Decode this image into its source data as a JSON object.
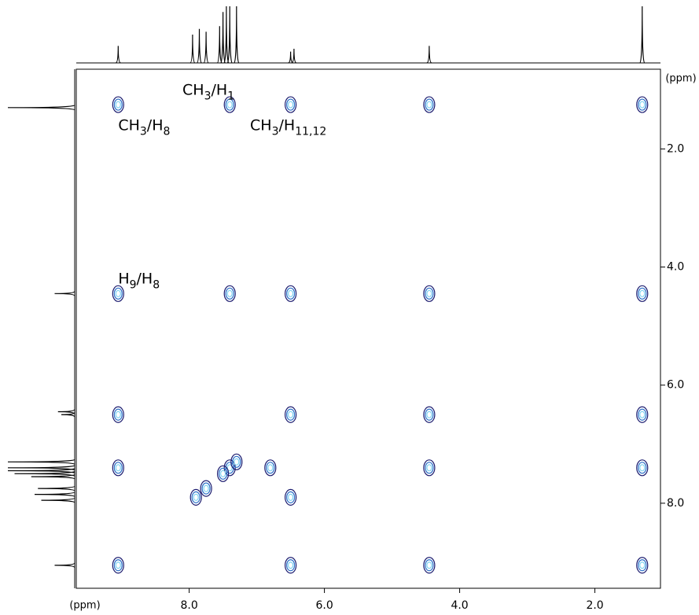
{
  "chart_data": {
    "type": "contour",
    "xlabel": "(ppm)",
    "ylabel": "(ppm)",
    "xlim": [
      9.67,
      1.03
    ],
    "ylim": [
      0.65,
      9.44
    ],
    "xticks": [
      {
        "value": 8,
        "label": "8.0"
      },
      {
        "value": 6,
        "label": "6.0"
      },
      {
        "value": 4,
        "label": "4.0"
      },
      {
        "value": 2,
        "label": "2.0"
      }
    ],
    "yticks": [
      {
        "value": 2,
        "label": "2.0"
      },
      {
        "value": 4,
        "label": "4.0"
      },
      {
        "value": 6,
        "label": "6.0"
      },
      {
        "value": 8,
        "label": "8.0"
      }
    ],
    "colors": [
      "#1a1a6e",
      "#2a6fc9",
      "#7fd3f0"
    ],
    "annotations": [
      {
        "x": 8.1,
        "y": 1.0,
        "parts": [
          {
            "text": "CH"
          },
          {
            "sub": "3"
          },
          {
            "text": "/H"
          },
          {
            "sub": "1"
          }
        ]
      },
      {
        "x": 9.05,
        "y": 1.6,
        "parts": [
          {
            "text": "CH"
          },
          {
            "sub": "3"
          },
          {
            "text": "/H"
          },
          {
            "sub": "8"
          }
        ]
      },
      {
        "x": 7.1,
        "y": 1.6,
        "parts": [
          {
            "text": "CH"
          },
          {
            "sub": "3"
          },
          {
            "text": "/H"
          },
          {
            "sub": "11,12"
          }
        ]
      },
      {
        "x": 9.05,
        "y": 4.2,
        "parts": [
          {
            "text": "H"
          },
          {
            "sub": "9"
          },
          {
            "text": "/H"
          },
          {
            "sub": "8"
          }
        ]
      }
    ],
    "peaks": {
      "x": [
        9.05,
        1.3,
        4.45,
        6.5,
        7.4,
        9.05,
        4.45,
        6.5,
        7.4,
        9.05,
        6.5,
        7.4,
        9.05,
        4.45,
        9.05,
        4.45,
        6.5,
        1.3,
        1.3,
        4.45,
        6.5,
        1.3,
        1.3,
        7.9,
        7.75,
        7.5,
        7.3,
        6.8
      ],
      "y": [
        9.05,
        1.25,
        4.45,
        6.5,
        7.4,
        1.25,
        1.25,
        1.25,
        1.25,
        4.45,
        4.45,
        4.45,
        6.5,
        6.5,
        7.4,
        7.4,
        7.9,
        7.4,
        9.05,
        9.05,
        9.05,
        4.45,
        6.5,
        7.9,
        7.75,
        7.5,
        7.3,
        7.4
      ]
    },
    "projection": {
      "ppm": [
        9.05,
        7.95,
        7.85,
        7.75,
        7.55,
        7.5,
        7.45,
        7.4,
        7.3,
        6.5,
        6.45,
        4.45,
        1.3
      ],
      "height": [
        0.3,
        0.5,
        0.6,
        0.55,
        0.65,
        0.9,
        1.0,
        1.0,
        1.0,
        0.2,
        0.25,
        0.3,
        1.0
      ]
    }
  }
}
